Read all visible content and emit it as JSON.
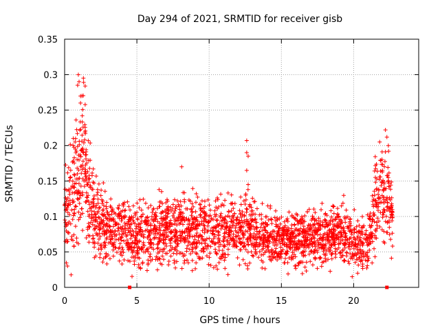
{
  "chart_data": {
    "type": "scatter",
    "title": "Day 294 of 2021, SRMTID for receiver gisb",
    "xlabel": "GPS time / hours",
    "ylabel": "SRMTID / TECUs",
    "xlim": [
      0,
      24.5
    ],
    "ylim": [
      0,
      0.35
    ],
    "x_ticks": [
      0,
      5,
      10,
      15,
      20
    ],
    "x_tick_labels": [
      "0",
      "5",
      "10",
      "15",
      "20"
    ],
    "y_ticks": [
      0,
      0.05,
      0.1,
      0.15,
      0.2,
      0.25,
      0.3,
      0.35
    ],
    "y_tick_labels": [
      "0",
      "0.05",
      "0.1",
      "0.15",
      "0.2",
      "0.25",
      "0.3",
      "0.35"
    ],
    "grid": true,
    "marker": "+",
    "color": "#ff0000",
    "bottom_markers_x": [
      4.5,
      22.3
    ],
    "envelope": [
      {
        "x": 0.0,
        "center": 0.1,
        "spread": 0.06
      },
      {
        "x": 0.5,
        "center": 0.12,
        "spread": 0.08
      },
      {
        "x": 1.0,
        "center": 0.17,
        "spread": 0.1
      },
      {
        "x": 1.3,
        "center": 0.2,
        "spread": 0.09
      },
      {
        "x": 1.6,
        "center": 0.15,
        "spread": 0.08
      },
      {
        "x": 2.0,
        "center": 0.1,
        "spread": 0.06
      },
      {
        "x": 3.0,
        "center": 0.08,
        "spread": 0.05
      },
      {
        "x": 5.0,
        "center": 0.075,
        "spread": 0.045
      },
      {
        "x": 7.0,
        "center": 0.08,
        "spread": 0.045
      },
      {
        "x": 9.0,
        "center": 0.08,
        "spread": 0.05
      },
      {
        "x": 11.0,
        "center": 0.08,
        "spread": 0.045
      },
      {
        "x": 13.0,
        "center": 0.08,
        "spread": 0.045
      },
      {
        "x": 15.0,
        "center": 0.065,
        "spread": 0.035
      },
      {
        "x": 17.0,
        "center": 0.07,
        "spread": 0.04
      },
      {
        "x": 19.0,
        "center": 0.075,
        "spread": 0.045
      },
      {
        "x": 20.5,
        "center": 0.06,
        "spread": 0.035
      },
      {
        "x": 21.0,
        "center": 0.06,
        "spread": 0.035
      },
      {
        "x": 21.5,
        "center": 0.12,
        "spread": 0.07
      },
      {
        "x": 22.0,
        "center": 0.13,
        "spread": 0.07
      },
      {
        "x": 22.7,
        "center": 0.11,
        "spread": 0.06
      }
    ],
    "highlight_points": [
      {
        "x": 0.95,
        "y": 0.3
      },
      {
        "x": 1.0,
        "y": 0.29
      },
      {
        "x": 1.3,
        "y": 0.295
      },
      {
        "x": 1.2,
        "y": 0.27
      },
      {
        "x": 1.1,
        "y": 0.26
      },
      {
        "x": 0.9,
        "y": 0.285
      },
      {
        "x": 12.6,
        "y": 0.207
      },
      {
        "x": 12.6,
        "y": 0.19
      },
      {
        "x": 12.7,
        "y": 0.185
      },
      {
        "x": 12.6,
        "y": 0.165
      },
      {
        "x": 12.7,
        "y": 0.145
      },
      {
        "x": 8.1,
        "y": 0.17
      },
      {
        "x": 22.2,
        "y": 0.222
      },
      {
        "x": 22.3,
        "y": 0.212
      },
      {
        "x": 22.4,
        "y": 0.2
      },
      {
        "x": 21.8,
        "y": 0.205
      },
      {
        "x": 0.6,
        "y": 0.21
      },
      {
        "x": 19.9,
        "y": 0.015
      },
      {
        "x": 11.3,
        "y": 0.018
      },
      {
        "x": 0.2,
        "y": 0.03
      }
    ]
  }
}
